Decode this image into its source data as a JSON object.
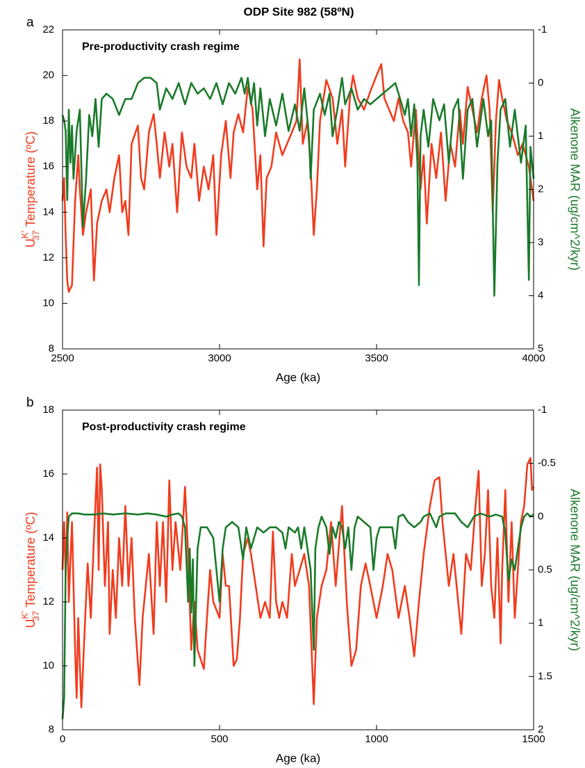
{
  "chart_data": [
    {
      "type": "line",
      "title": "ODP Site 982 (58ºN)",
      "panel_label": "a",
      "annotation": "Pre-productivity crash regime",
      "xlabel": "Age (ka)",
      "ylabel_parts": [
        "U",
        "K'",
        "37",
        "Temperature (ºC)"
      ],
      "y2label": "Alkenone MAR (ug/cm^2/kyr)",
      "xlim": [
        2500,
        4000
      ],
      "xticks": [
        2500,
        3000,
        3500,
        4000
      ],
      "ylim": [
        8,
        22
      ],
      "yticks": [
        8,
        10,
        12,
        14,
        16,
        18,
        20,
        22
      ],
      "y2lim": [
        5,
        -1
      ],
      "y2ticks": [
        -1,
        0,
        1,
        2,
        3,
        4,
        5
      ],
      "series": [
        {
          "color": "#f03c1e",
          "axis": "y",
          "x": [
            2500,
            2505,
            2510,
            2515,
            2520,
            2530,
            2540,
            2550,
            2555,
            2565,
            2575,
            2590,
            2600,
            2610,
            2625,
            2640,
            2650,
            2665,
            2680,
            2690,
            2700,
            2710,
            2720,
            2740,
            2750,
            2760,
            2775,
            2790,
            2800,
            2810,
            2825,
            2840,
            2850,
            2865,
            2880,
            2895,
            2910,
            2920,
            2935,
            2950,
            2965,
            2980,
            2990,
            3005,
            3020,
            3035,
            3045,
            3060,
            3075,
            3090,
            3105,
            3120,
            3130,
            3140,
            3150,
            3165,
            3180,
            3200,
            3215,
            3230,
            3245,
            3255,
            3265,
            3280,
            3290,
            3300,
            3310,
            3320,
            3340,
            3360,
            3375,
            3390,
            3400,
            3415,
            3425,
            3440,
            3460,
            3480,
            3500,
            3515,
            3525,
            3540,
            3555,
            3570,
            3585,
            3600,
            3610,
            3625,
            3640,
            3650,
            3660,
            3675,
            3690,
            3705,
            3720,
            3735,
            3750,
            3765,
            3775,
            3790,
            3805,
            3820,
            3835,
            3850,
            3860,
            3870,
            3880,
            3890,
            3900,
            3915,
            3930,
            3950,
            3965,
            3985,
            4000
          ],
          "values": [
            14.5,
            15.5,
            13,
            11,
            10.5,
            10.8,
            14.5,
            16.5,
            15,
            13,
            14,
            15,
            11,
            13.5,
            14.5,
            15,
            14,
            15.5,
            16.5,
            14,
            14.5,
            13,
            17,
            17.8,
            15.5,
            15,
            17.5,
            18.3,
            17,
            15.5,
            17.5,
            16,
            17,
            14,
            17.5,
            16,
            15.5,
            17,
            14.5,
            16,
            15,
            16.5,
            13,
            16.5,
            18,
            15.5,
            17.5,
            18.3,
            17.5,
            19.5,
            18.5,
            15,
            16.5,
            12.5,
            15.5,
            16,
            17.5,
            16.5,
            17,
            17.5,
            18,
            20.7,
            17,
            18,
            16,
            13,
            15,
            18,
            19.8,
            19,
            17,
            18.5,
            16,
            19,
            20,
            19,
            18.5,
            19.3,
            20,
            20.5,
            19,
            18.5,
            18,
            19,
            18,
            17.5,
            16,
            18.5,
            15,
            16.5,
            13.5,
            17,
            15.5,
            17.5,
            14.5,
            17,
            16,
            18.5,
            17,
            19.5,
            18.5,
            17.5,
            19,
            20,
            18.5,
            14,
            18,
            19.8,
            19,
            18,
            17.5,
            16.5,
            17,
            16,
            14.5
          ]
        },
        {
          "color": "#1a7a2a",
          "axis": "y2",
          "x": [
            2500,
            2505,
            2510,
            2515,
            2520,
            2525,
            2530,
            2535,
            2545,
            2555,
            2565,
            2575,
            2585,
            2595,
            2605,
            2615,
            2625,
            2640,
            2660,
            2680,
            2700,
            2720,
            2740,
            2760,
            2780,
            2800,
            2810,
            2830,
            2850,
            2870,
            2890,
            2910,
            2930,
            2950,
            2970,
            2990,
            3010,
            3030,
            3050,
            3070,
            3080,
            3090,
            3100,
            3110,
            3120,
            3130,
            3145,
            3160,
            3180,
            3200,
            3220,
            3240,
            3255,
            3270,
            3285,
            3290,
            3300,
            3320,
            3335,
            3350,
            3360,
            3375,
            3390,
            3400,
            3420,
            3440,
            3460,
            3480,
            3500,
            3520,
            3540,
            3560,
            3575,
            3590,
            3600,
            3610,
            3620,
            3630,
            3635,
            3640,
            3650,
            3665,
            3680,
            3700,
            3715,
            3730,
            3745,
            3760,
            3775,
            3790,
            3805,
            3820,
            3840,
            3855,
            3865,
            3875,
            3885,
            3895,
            3910,
            3925,
            3940,
            3960,
            3975,
            3985,
            3990,
            4000
          ],
          "values": [
            0.6,
            0.7,
            0.9,
            2.2,
            0.5,
            1.5,
            0.8,
            1.8,
            0.9,
            0.5,
            2.7,
            1.8,
            0.6,
            1.0,
            0.3,
            1.2,
            0.3,
            0.2,
            0.3,
            0.6,
            0.3,
            0.3,
            0.0,
            -0.1,
            -0.1,
            0.0,
            0.5,
            0.1,
            0.3,
            0.0,
            0.4,
            0.0,
            0.2,
            0.1,
            0.3,
            0.0,
            0.4,
            0.0,
            0.2,
            -0.1,
            0.2,
            -0.1,
            0.4,
            0.0,
            0.8,
            0.1,
            1.0,
            0.3,
            0.8,
            0.2,
            0.9,
            0.4,
            0.9,
            0.1,
            1.0,
            1.8,
            0.5,
            0.2,
            0.6,
            0.2,
            1.0,
            0.5,
            -0.1,
            0.4,
            0.1,
            0.5,
            0.3,
            0.4,
            0.3,
            0.2,
            0.1,
            0.0,
            0.3,
            0.6,
            0.3,
            1.0,
            0.4,
            1.5,
            3.8,
            1.0,
            0.5,
            1.2,
            0.3,
            0.7,
            0.4,
            1.5,
            0.5,
            0.3,
            1.8,
            0.5,
            0.3,
            1.2,
            0.3,
            1.0,
            0.7,
            4.0,
            1.5,
            0.5,
            0.3,
            1.2,
            0.5,
            1.5,
            0.8,
            3.7,
            1.2,
            1.8
          ]
        }
      ]
    },
    {
      "type": "line",
      "panel_label": "b",
      "annotation": "Post-productivity crash regime",
      "xlabel": "Age (ka)",
      "ylabel_parts": [
        "U",
        "K'",
        "37",
        "Temperature (ºC)"
      ],
      "y2label": "Alkenone MAR (ug/cm^2/kyr)",
      "xlim": [
        0,
        1500
      ],
      "xticks": [
        0,
        500,
        1000,
        1500
      ],
      "ylim": [
        8,
        18
      ],
      "yticks": [
        8,
        10,
        12,
        14,
        16,
        18
      ],
      "y2lim": [
        2,
        -1
      ],
      "y2ticks": [
        -1,
        -0.5,
        0,
        0.5,
        1,
        1.5,
        2
      ],
      "series": [
        {
          "color": "#f03c1e",
          "axis": "y",
          "x": [
            0,
            5,
            10,
            15,
            20,
            30,
            40,
            45,
            50,
            60,
            70,
            80,
            90,
            100,
            110,
            115,
            120,
            125,
            135,
            145,
            150,
            160,
            170,
            180,
            190,
            200,
            210,
            220,
            230,
            245,
            255,
            265,
            275,
            290,
            300,
            310,
            320,
            330,
            340,
            350,
            360,
            375,
            390,
            400,
            410,
            420,
            430,
            450,
            460,
            470,
            480,
            500,
            510,
            520,
            530,
            545,
            555,
            565,
            575,
            590,
            600,
            615,
            630,
            645,
            660,
            670,
            680,
            690,
            700,
            715,
            730,
            740,
            755,
            770,
            785,
            800,
            810,
            825,
            840,
            855,
            870,
            890,
            905,
            920,
            935,
            950,
            965,
            980,
            1000,
            1020,
            1035,
            1050,
            1070,
            1090,
            1105,
            1120,
            1135,
            1150,
            1170,
            1185,
            1200,
            1210,
            1230,
            1245,
            1260,
            1270,
            1285,
            1300,
            1315,
            1325,
            1335,
            1345,
            1355,
            1365,
            1375,
            1385,
            1395,
            1400,
            1410,
            1420,
            1430,
            1440,
            1450,
            1460,
            1470,
            1480,
            1490,
            1495,
            1500
          ],
          "values": [
            13,
            14.5,
            12.8,
            14.8,
            12,
            14.5,
            10.5,
            9,
            11.5,
            8.7,
            11,
            13.2,
            11.5,
            14,
            16.2,
            13,
            16.3,
            15.5,
            12.5,
            14.5,
            11,
            13,
            11.5,
            14,
            12.5,
            15,
            12.5,
            14,
            11.5,
            9.4,
            11.5,
            12.5,
            13.5,
            11,
            14.5,
            12.5,
            14.5,
            12,
            15.8,
            13,
            14.5,
            13,
            15.6,
            13.5,
            10.5,
            12,
            10.5,
            9.9,
            11.5,
            13,
            12,
            11.5,
            13.5,
            12.5,
            12.5,
            10,
            10.2,
            11.5,
            13.5,
            14,
            13.5,
            12.5,
            11.5,
            12,
            11.5,
            14.2,
            12,
            11.5,
            12,
            11.5,
            13.5,
            12.5,
            13,
            13.5,
            12.5,
            8.8,
            11.5,
            12.5,
            13,
            14.5,
            12.5,
            15,
            12,
            10,
            10.5,
            12.5,
            13.2,
            12.5,
            11.5,
            12.5,
            13.5,
            13,
            11.5,
            12.5,
            11.5,
            10.3,
            12,
            13.5,
            15,
            15.8,
            15.9,
            14.5,
            12.5,
            13.5,
            12,
            11,
            13.5,
            13,
            15,
            16.1,
            12.5,
            13.5,
            15.5,
            12.5,
            11.5,
            14,
            10.7,
            13,
            15.5,
            12,
            14.5,
            11.5,
            13,
            14.5,
            15,
            16.3,
            16.5,
            15.5,
            15.6
          ]
        },
        {
          "color": "#1a7a2a",
          "axis": "y2",
          "x": [
            0,
            5,
            10,
            15,
            20,
            30,
            50,
            70,
            100,
            130,
            160,
            200,
            240,
            270,
            300,
            330,
            350,
            370,
            380,
            390,
            400,
            405,
            410,
            415,
            420,
            430,
            440,
            460,
            480,
            490,
            500,
            510,
            520,
            540,
            560,
            575,
            585,
            600,
            620,
            640,
            660,
            680,
            700,
            710,
            720,
            740,
            750,
            760,
            770,
            790,
            800,
            805,
            815,
            825,
            840,
            850,
            860,
            870,
            880,
            890,
            900,
            910,
            920,
            930,
            940,
            960,
            980,
            990,
            1000,
            1010,
            1030,
            1050,
            1060,
            1070,
            1085,
            1100,
            1120,
            1140,
            1150,
            1170,
            1190,
            1200,
            1220,
            1250,
            1270,
            1290,
            1310,
            1330,
            1360,
            1380,
            1400,
            1410,
            1420,
            1430,
            1440,
            1450,
            1460,
            1470,
            1480,
            1490,
            1500
          ],
          "values": [
            1.9,
            1.7,
            0.5,
            0.2,
            0.0,
            -0.03,
            -0.03,
            -0.02,
            -0.02,
            -0.03,
            -0.02,
            -0.03,
            -0.02,
            -0.03,
            -0.02,
            0.0,
            -0.02,
            -0.03,
            0.0,
            0.1,
            0.8,
            0.3,
            0.9,
            0.4,
            1.4,
            0.3,
            0.1,
            0.1,
            0.2,
            0.5,
            0.8,
            0.3,
            0.1,
            0.05,
            0.1,
            0.4,
            0.1,
            0.3,
            0.1,
            0.15,
            0.1,
            0.1,
            0.15,
            0.3,
            0.1,
            0.15,
            0.1,
            0.3,
            0.1,
            0.5,
            1.25,
            0.3,
            0.1,
            0.0,
            0.1,
            0.35,
            0.1,
            0.2,
            0.05,
            0.1,
            0.3,
            0.1,
            0.5,
            0.1,
            0.0,
            0.05,
            0.1,
            0.5,
            0.2,
            0.1,
            0.1,
            0.1,
            0.3,
            0.0,
            -0.02,
            0.05,
            0.1,
            0.05,
            0.0,
            -0.03,
            0.1,
            0.0,
            -0.03,
            -0.03,
            0.05,
            0.1,
            0.0,
            -0.03,
            0.0,
            -0.02,
            0.0,
            0.15,
            0.6,
            0.4,
            0.5,
            0.3,
            0.1,
            0.0,
            -0.03,
            0.0,
            -0.02
          ]
        }
      ]
    }
  ]
}
